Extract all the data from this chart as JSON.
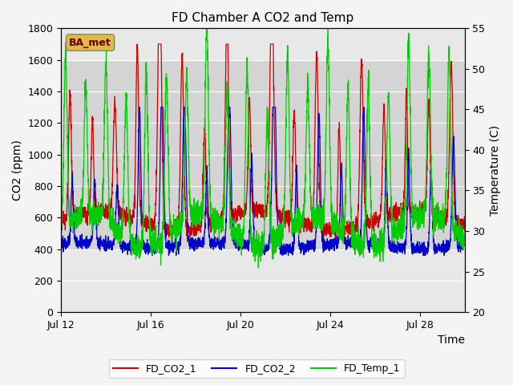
{
  "title": "FD Chamber A CO2 and Temp",
  "xlabel": "Time",
  "ylabel_left": "CO2 (ppm)",
  "ylabel_right": "Temperature (C)",
  "ylim_left": [
    0,
    1800
  ],
  "ylim_right": [
    20,
    55
  ],
  "yticks_left": [
    0,
    200,
    400,
    600,
    800,
    1000,
    1200,
    1400,
    1600,
    1800
  ],
  "yticks_right": [
    20,
    25,
    30,
    35,
    40,
    45,
    50,
    55
  ],
  "xlim": [
    0,
    18
  ],
  "xtick_labels": [
    "Jul 12",
    "Jul 16",
    "Jul 20",
    "Jul 24",
    "Jul 28"
  ],
  "xtick_positions": [
    0,
    4,
    8,
    12,
    16
  ],
  "color_co2_1": "#cc0000",
  "color_co2_2": "#0000cc",
  "color_temp": "#00cc00",
  "legend_labels": [
    "FD_CO2_1",
    "FD_CO2_2",
    "FD_Temp_1"
  ],
  "annotation_text": "BA_met",
  "annotation_bg": "#ddbb44",
  "shaded_ymin": 400,
  "shaded_ymax": 1600,
  "plot_bg": "#e8e8e8",
  "fig_bg": "#f4f4f4",
  "grid_color": "#ffffff",
  "title_fontsize": 11,
  "axis_label_fontsize": 10,
  "tick_fontsize": 9,
  "linewidth": 0.9
}
